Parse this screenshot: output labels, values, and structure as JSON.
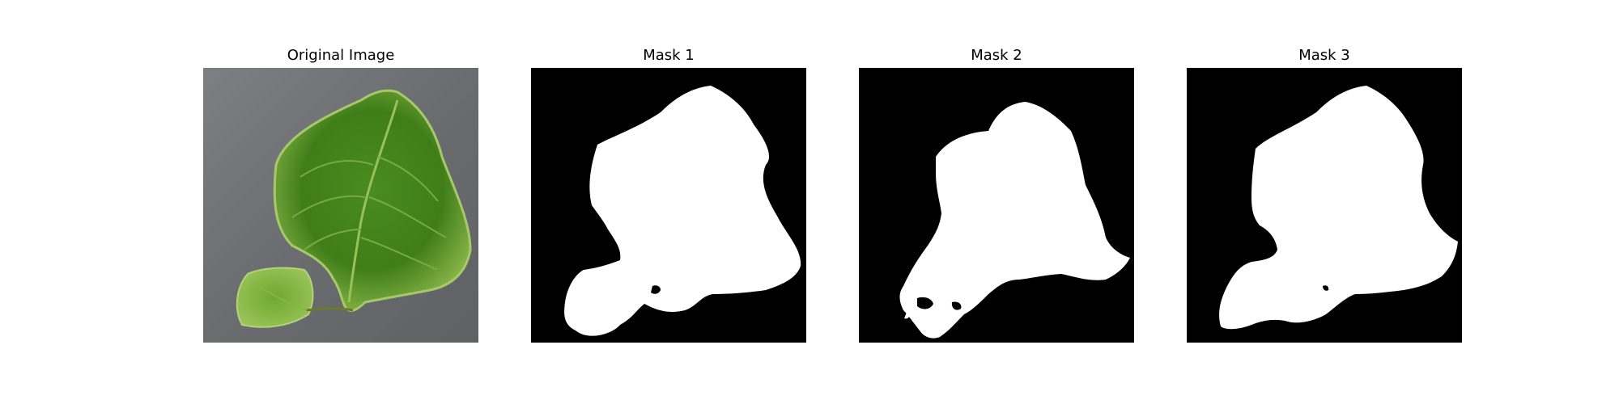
{
  "panels": [
    {
      "title": "Original Image"
    },
    {
      "title": "Mask 1"
    },
    {
      "title": "Mask 2"
    },
    {
      "title": "Mask 3"
    }
  ],
  "colors": {
    "background": "#ffffff",
    "mask_background": "#000000",
    "mask_foreground": "#ffffff",
    "photo_background": "#6e7073",
    "leaf_green": "#4e8f22",
    "leaf_light": "#8fbd4c"
  }
}
